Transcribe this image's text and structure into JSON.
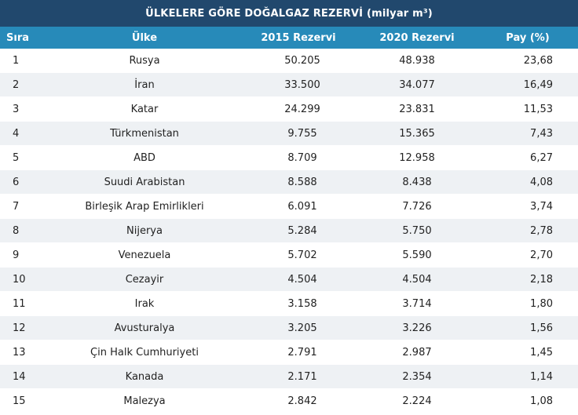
{
  "title": "ÜLKELERE GÖRE DOĞALGAZ REZERVİ (milyar m³)",
  "headers": {
    "rank": "Sıra",
    "country": "Ülke",
    "reserve_2015": "2015 Rezervi",
    "reserve_2020": "2020 Rezervi",
    "share": "Pay (%)"
  },
  "rows": [
    {
      "rank": "1",
      "country": "Rusya",
      "reserve_2015": "50.205",
      "reserve_2020": "48.938",
      "share": "23,68"
    },
    {
      "rank": "2",
      "country": "İran",
      "reserve_2015": "33.500",
      "reserve_2020": "34.077",
      "share": "16,49"
    },
    {
      "rank": "3",
      "country": "Katar",
      "reserve_2015": "24.299",
      "reserve_2020": "23.831",
      "share": "11,53"
    },
    {
      "rank": "4",
      "country": "Türkmenistan",
      "reserve_2015": "9.755",
      "reserve_2020": "15.365",
      "share": "7,43"
    },
    {
      "rank": "5",
      "country": "ABD",
      "reserve_2015": "8.709",
      "reserve_2020": "12.958",
      "share": "6,27"
    },
    {
      "rank": "6",
      "country": "Suudi Arabistan",
      "reserve_2015": "8.588",
      "reserve_2020": "8.438",
      "share": "4,08"
    },
    {
      "rank": "7",
      "country": "Birleşik Arap Emirlikleri",
      "reserve_2015": "6.091",
      "reserve_2020": "7.726",
      "share": "3,74"
    },
    {
      "rank": "8",
      "country": "Nijerya",
      "reserve_2015": "5.284",
      "reserve_2020": "5.750",
      "share": "2,78"
    },
    {
      "rank": "9",
      "country": "Venezuela",
      "reserve_2015": "5.702",
      "reserve_2020": "5.590",
      "share": "2,70"
    },
    {
      "rank": "10",
      "country": "Cezayir",
      "reserve_2015": "4.504",
      "reserve_2020": "4.504",
      "share": "2,18"
    },
    {
      "rank": "11",
      "country": "Irak",
      "reserve_2015": "3.158",
      "reserve_2020": "3.714",
      "share": "1,80"
    },
    {
      "rank": "12",
      "country": "Avusturalya",
      "reserve_2015": "3.205",
      "reserve_2020": "3.226",
      "share": "1,56"
    },
    {
      "rank": "13",
      "country": "Çin Halk Cumhuriyeti",
      "reserve_2015": "2.791",
      "reserve_2020": "2.987",
      "share": "1,45"
    },
    {
      "rank": "14",
      "country": "Kanada",
      "reserve_2015": "2.171",
      "reserve_2020": "2.354",
      "share": "1,14"
    },
    {
      "rank": "15",
      "country": "Malezya",
      "reserve_2015": "2.842",
      "reserve_2020": "2.224",
      "share": "1,08"
    }
  ]
}
